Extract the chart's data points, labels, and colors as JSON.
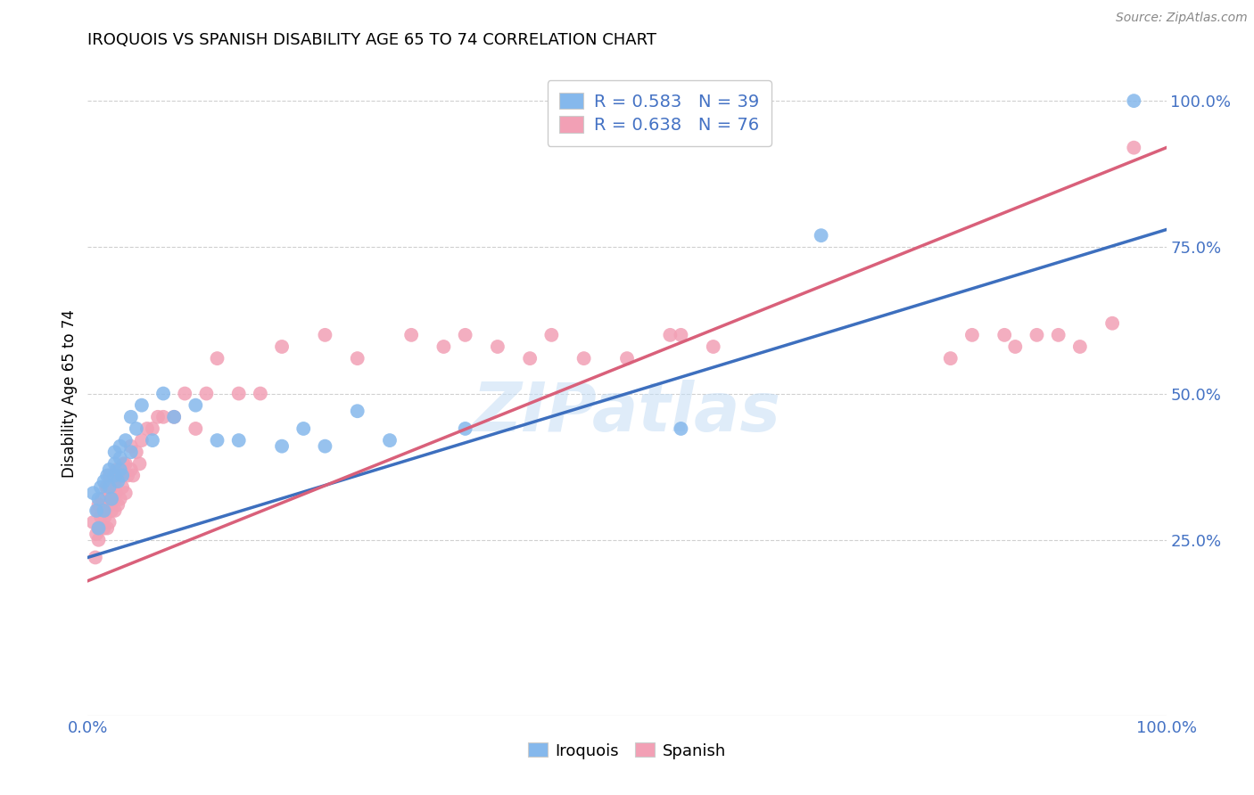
{
  "title": "IROQUOIS VS SPANISH DISABILITY AGE 65 TO 74 CORRELATION CHART",
  "source": "Source: ZipAtlas.com",
  "ylabel": "Disability Age 65 to 74",
  "xlim": [
    0,
    1
  ],
  "ylim": [
    -0.05,
    1.05
  ],
  "ytick_positions": [
    0.25,
    0.5,
    0.75,
    1.0
  ],
  "ytick_labels": [
    "25.0%",
    "50.0%",
    "75.0%",
    "100.0%"
  ],
  "xtick_positions": [
    0.0,
    1.0
  ],
  "xtick_labels": [
    "0.0%",
    "100.0%"
  ],
  "R_iroquois": 0.583,
  "N_iroquois": 39,
  "R_spanish": 0.638,
  "N_spanish": 76,
  "color_iroquois": "#85b8ec",
  "color_spanish": "#f2a0b5",
  "color_iroquois_line": "#3d6fbe",
  "color_spanish_line": "#d9607a",
  "watermark": "ZIPatlas",
  "iroquois_x": [
    0.005,
    0.008,
    0.01,
    0.01,
    0.012,
    0.015,
    0.015,
    0.018,
    0.02,
    0.02,
    0.022,
    0.025,
    0.025,
    0.025,
    0.028,
    0.03,
    0.03,
    0.03,
    0.032,
    0.035,
    0.04,
    0.04,
    0.045,
    0.05,
    0.06,
    0.07,
    0.08,
    0.1,
    0.12,
    0.14,
    0.18,
    0.2,
    0.22,
    0.25,
    0.28,
    0.35,
    0.55,
    0.68,
    0.97
  ],
  "iroquois_y": [
    0.33,
    0.3,
    0.27,
    0.32,
    0.34,
    0.3,
    0.35,
    0.36,
    0.34,
    0.37,
    0.32,
    0.36,
    0.38,
    0.4,
    0.35,
    0.37,
    0.39,
    0.41,
    0.36,
    0.42,
    0.4,
    0.46,
    0.44,
    0.48,
    0.42,
    0.5,
    0.46,
    0.48,
    0.42,
    0.42,
    0.41,
    0.44,
    0.41,
    0.47,
    0.42,
    0.44,
    0.44,
    0.77,
    1.0
  ],
  "spanish_x": [
    0.005,
    0.007,
    0.008,
    0.009,
    0.01,
    0.01,
    0.01,
    0.012,
    0.013,
    0.015,
    0.015,
    0.016,
    0.017,
    0.018,
    0.018,
    0.018,
    0.019,
    0.02,
    0.02,
    0.02,
    0.022,
    0.022,
    0.024,
    0.025,
    0.025,
    0.026,
    0.027,
    0.028,
    0.028,
    0.03,
    0.03,
    0.032,
    0.033,
    0.035,
    0.035,
    0.037,
    0.04,
    0.04,
    0.042,
    0.045,
    0.048,
    0.05,
    0.055,
    0.06,
    0.065,
    0.07,
    0.08,
    0.09,
    0.1,
    0.11,
    0.12,
    0.14,
    0.16,
    0.18,
    0.22,
    0.25,
    0.3,
    0.33,
    0.35,
    0.38,
    0.41,
    0.43,
    0.46,
    0.5,
    0.54,
    0.55,
    0.58,
    0.8,
    0.82,
    0.85,
    0.86,
    0.88,
    0.9,
    0.92,
    0.95,
    0.97
  ],
  "spanish_y": [
    0.28,
    0.22,
    0.26,
    0.3,
    0.25,
    0.27,
    0.31,
    0.29,
    0.32,
    0.27,
    0.3,
    0.29,
    0.34,
    0.27,
    0.31,
    0.34,
    0.31,
    0.28,
    0.33,
    0.36,
    0.3,
    0.34,
    0.32,
    0.3,
    0.35,
    0.33,
    0.37,
    0.31,
    0.36,
    0.32,
    0.36,
    0.34,
    0.38,
    0.33,
    0.38,
    0.36,
    0.37,
    0.41,
    0.36,
    0.4,
    0.38,
    0.42,
    0.44,
    0.44,
    0.46,
    0.46,
    0.46,
    0.5,
    0.44,
    0.5,
    0.56,
    0.5,
    0.5,
    0.58,
    0.6,
    0.56,
    0.6,
    0.58,
    0.6,
    0.58,
    0.56,
    0.6,
    0.56,
    0.56,
    0.6,
    0.6,
    0.58,
    0.56,
    0.6,
    0.6,
    0.58,
    0.6,
    0.6,
    0.58,
    0.62,
    0.92
  ]
}
